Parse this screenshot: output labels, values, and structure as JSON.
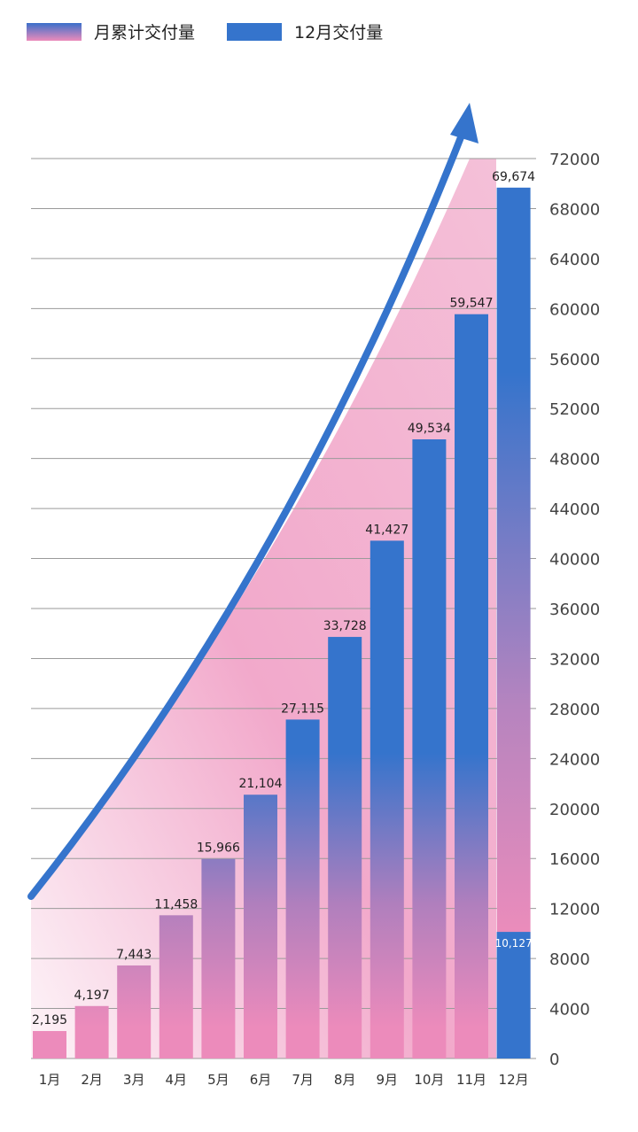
{
  "chart_data": {
    "type": "bar",
    "title": "",
    "xlabel": "",
    "ylabel": "",
    "categories": [
      "1月",
      "2月",
      "3月",
      "4月",
      "5月",
      "6月",
      "7月",
      "8月",
      "9月",
      "10月",
      "11月",
      "12月"
    ],
    "series": [
      {
        "name": "月累计交付量",
        "values": [
          2195,
          4197,
          7443,
          11458,
          15966,
          21104,
          27115,
          33728,
          41427,
          49534,
          59547,
          69674
        ],
        "labels": [
          "2,195",
          "4,197",
          "7,443",
          "11,458",
          "15,966",
          "21,104",
          "27,115",
          "33,728",
          "41,427",
          "49,534",
          "59,547",
          "69,674"
        ]
      },
      {
        "name": "12月交付量",
        "values": [
          null,
          null,
          null,
          null,
          null,
          null,
          null,
          null,
          null,
          null,
          null,
          10127
        ],
        "labels": [
          "",
          "",
          "",
          "",
          "",
          "",
          "",
          "",
          "",
          "",
          "",
          "10,127"
        ]
      }
    ],
    "ylim": [
      0,
      72000
    ],
    "yticks": [
      0,
      4000,
      8000,
      12000,
      16000,
      20000,
      24000,
      28000,
      32000,
      36000,
      40000,
      44000,
      48000,
      52000,
      56000,
      60000,
      64000,
      68000,
      72000
    ],
    "ytick_labels": [
      "0",
      "4000",
      "8000",
      "12000",
      "16000",
      "20000",
      "24000",
      "28000",
      "32000",
      "36000",
      "40000",
      "44000",
      "48000",
      "52000",
      "56000",
      "60000",
      "64000",
      "68000",
      "72000"
    ],
    "y_axis_position": "right",
    "grid": true,
    "legend_position": "top-left",
    "annotations": [
      "upward growth arrow over shaded pink area"
    ],
    "colors": {
      "blue": "#3574cc",
      "pink": "#ec8bbb",
      "area": "#f3b3d0",
      "grid": "#9a9a9a"
    }
  },
  "legend": {
    "cumulative": "月累计交付量",
    "december": "12月交付量"
  }
}
